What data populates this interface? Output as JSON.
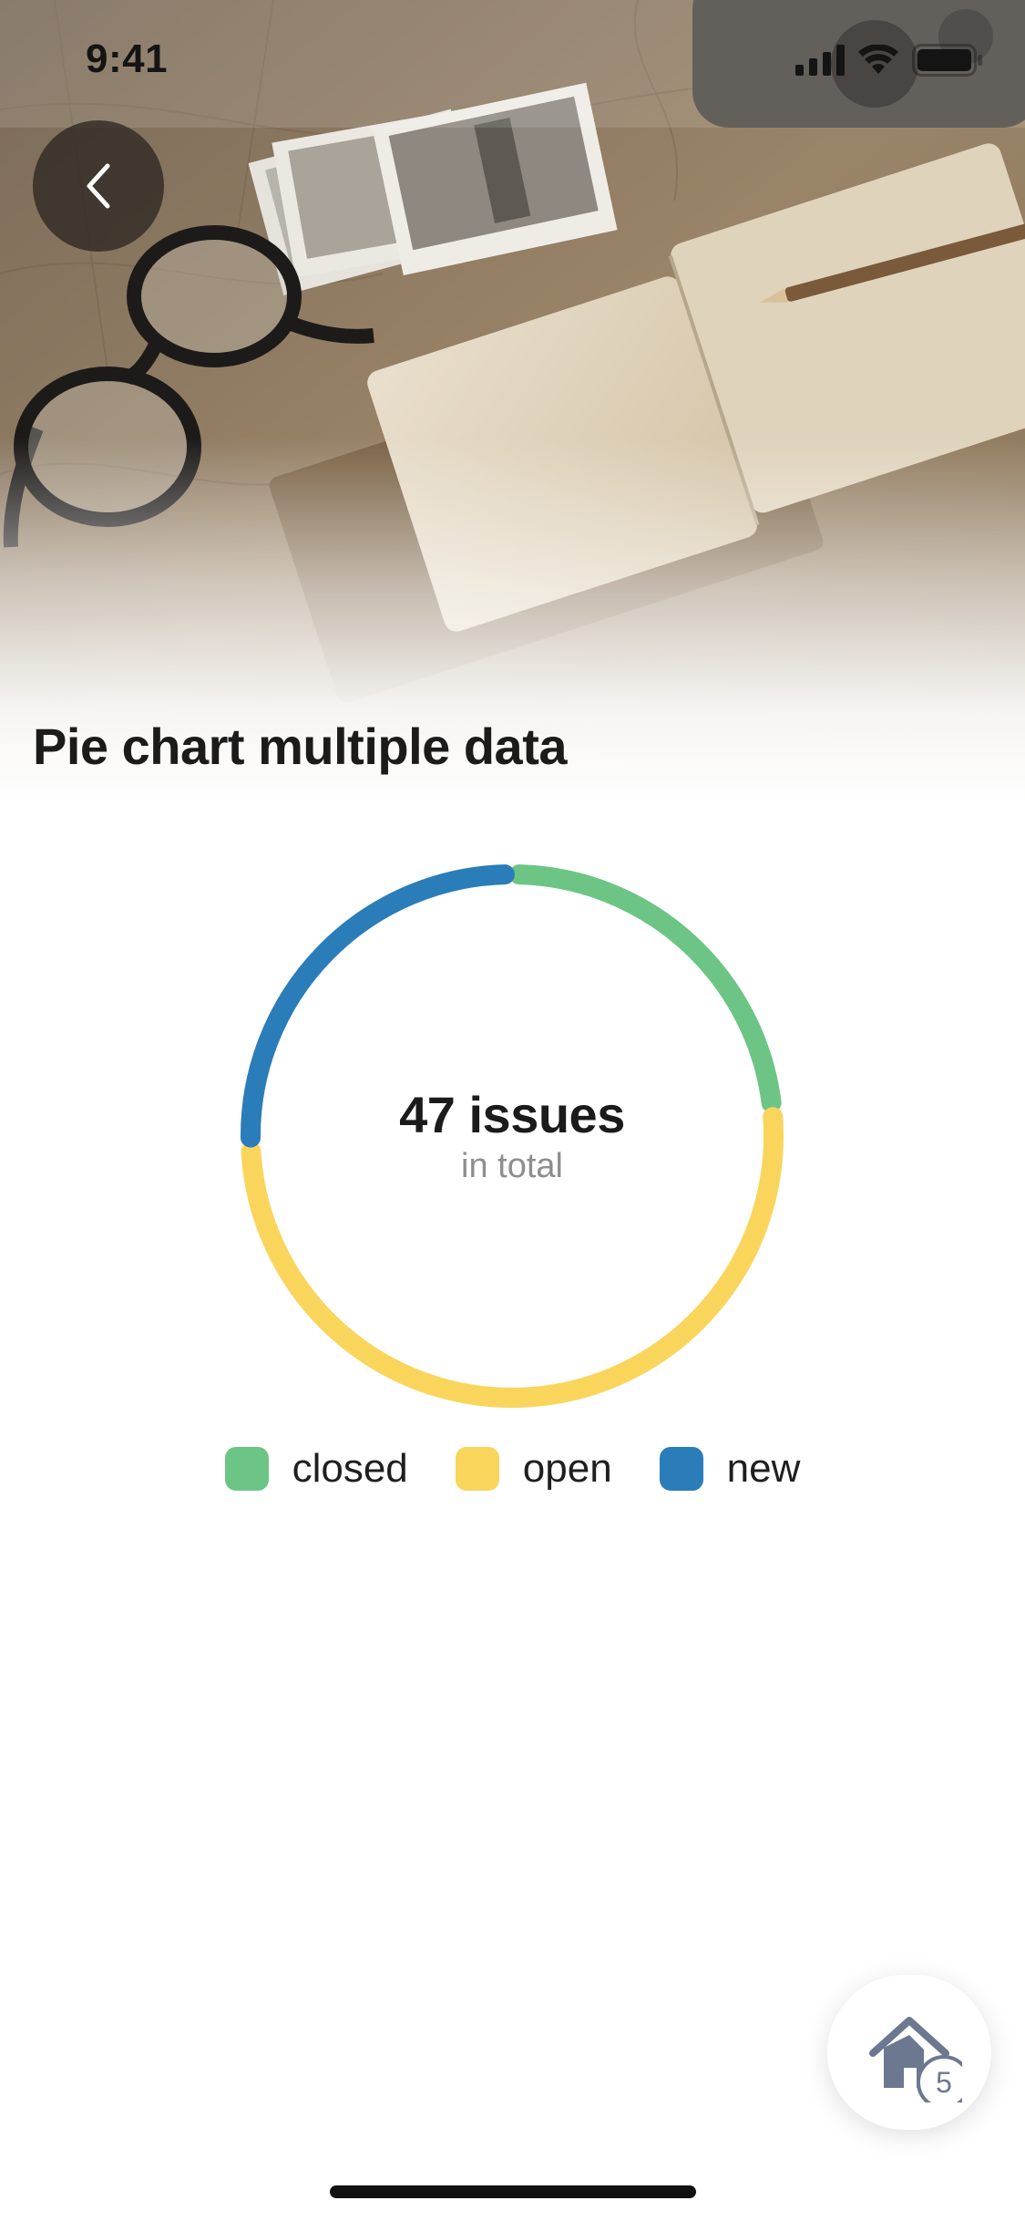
{
  "status_bar": {
    "time": "9:41",
    "icons": [
      "cellular-signal-icon",
      "wifi-icon",
      "battery-icon"
    ]
  },
  "header": {
    "back_icon": "chevron-left-icon",
    "title": "Pie chart multiple data"
  },
  "chart_data": {
    "type": "pie",
    "style": "donut",
    "categories": [
      "closed",
      "open",
      "new"
    ],
    "values": [
      11,
      24,
      12
    ],
    "colors": [
      "#6cc585",
      "#fad55c",
      "#2a7db8"
    ],
    "center_total": "47 issues",
    "center_subtitle": "in total",
    "legend_position": "bottom"
  },
  "fab": {
    "icon": "home-icon",
    "badge_count": "5"
  },
  "colors": {
    "closed": "#6cc585",
    "open": "#fad55c",
    "new": "#2a7db8",
    "gap": "#e8e8e8"
  }
}
